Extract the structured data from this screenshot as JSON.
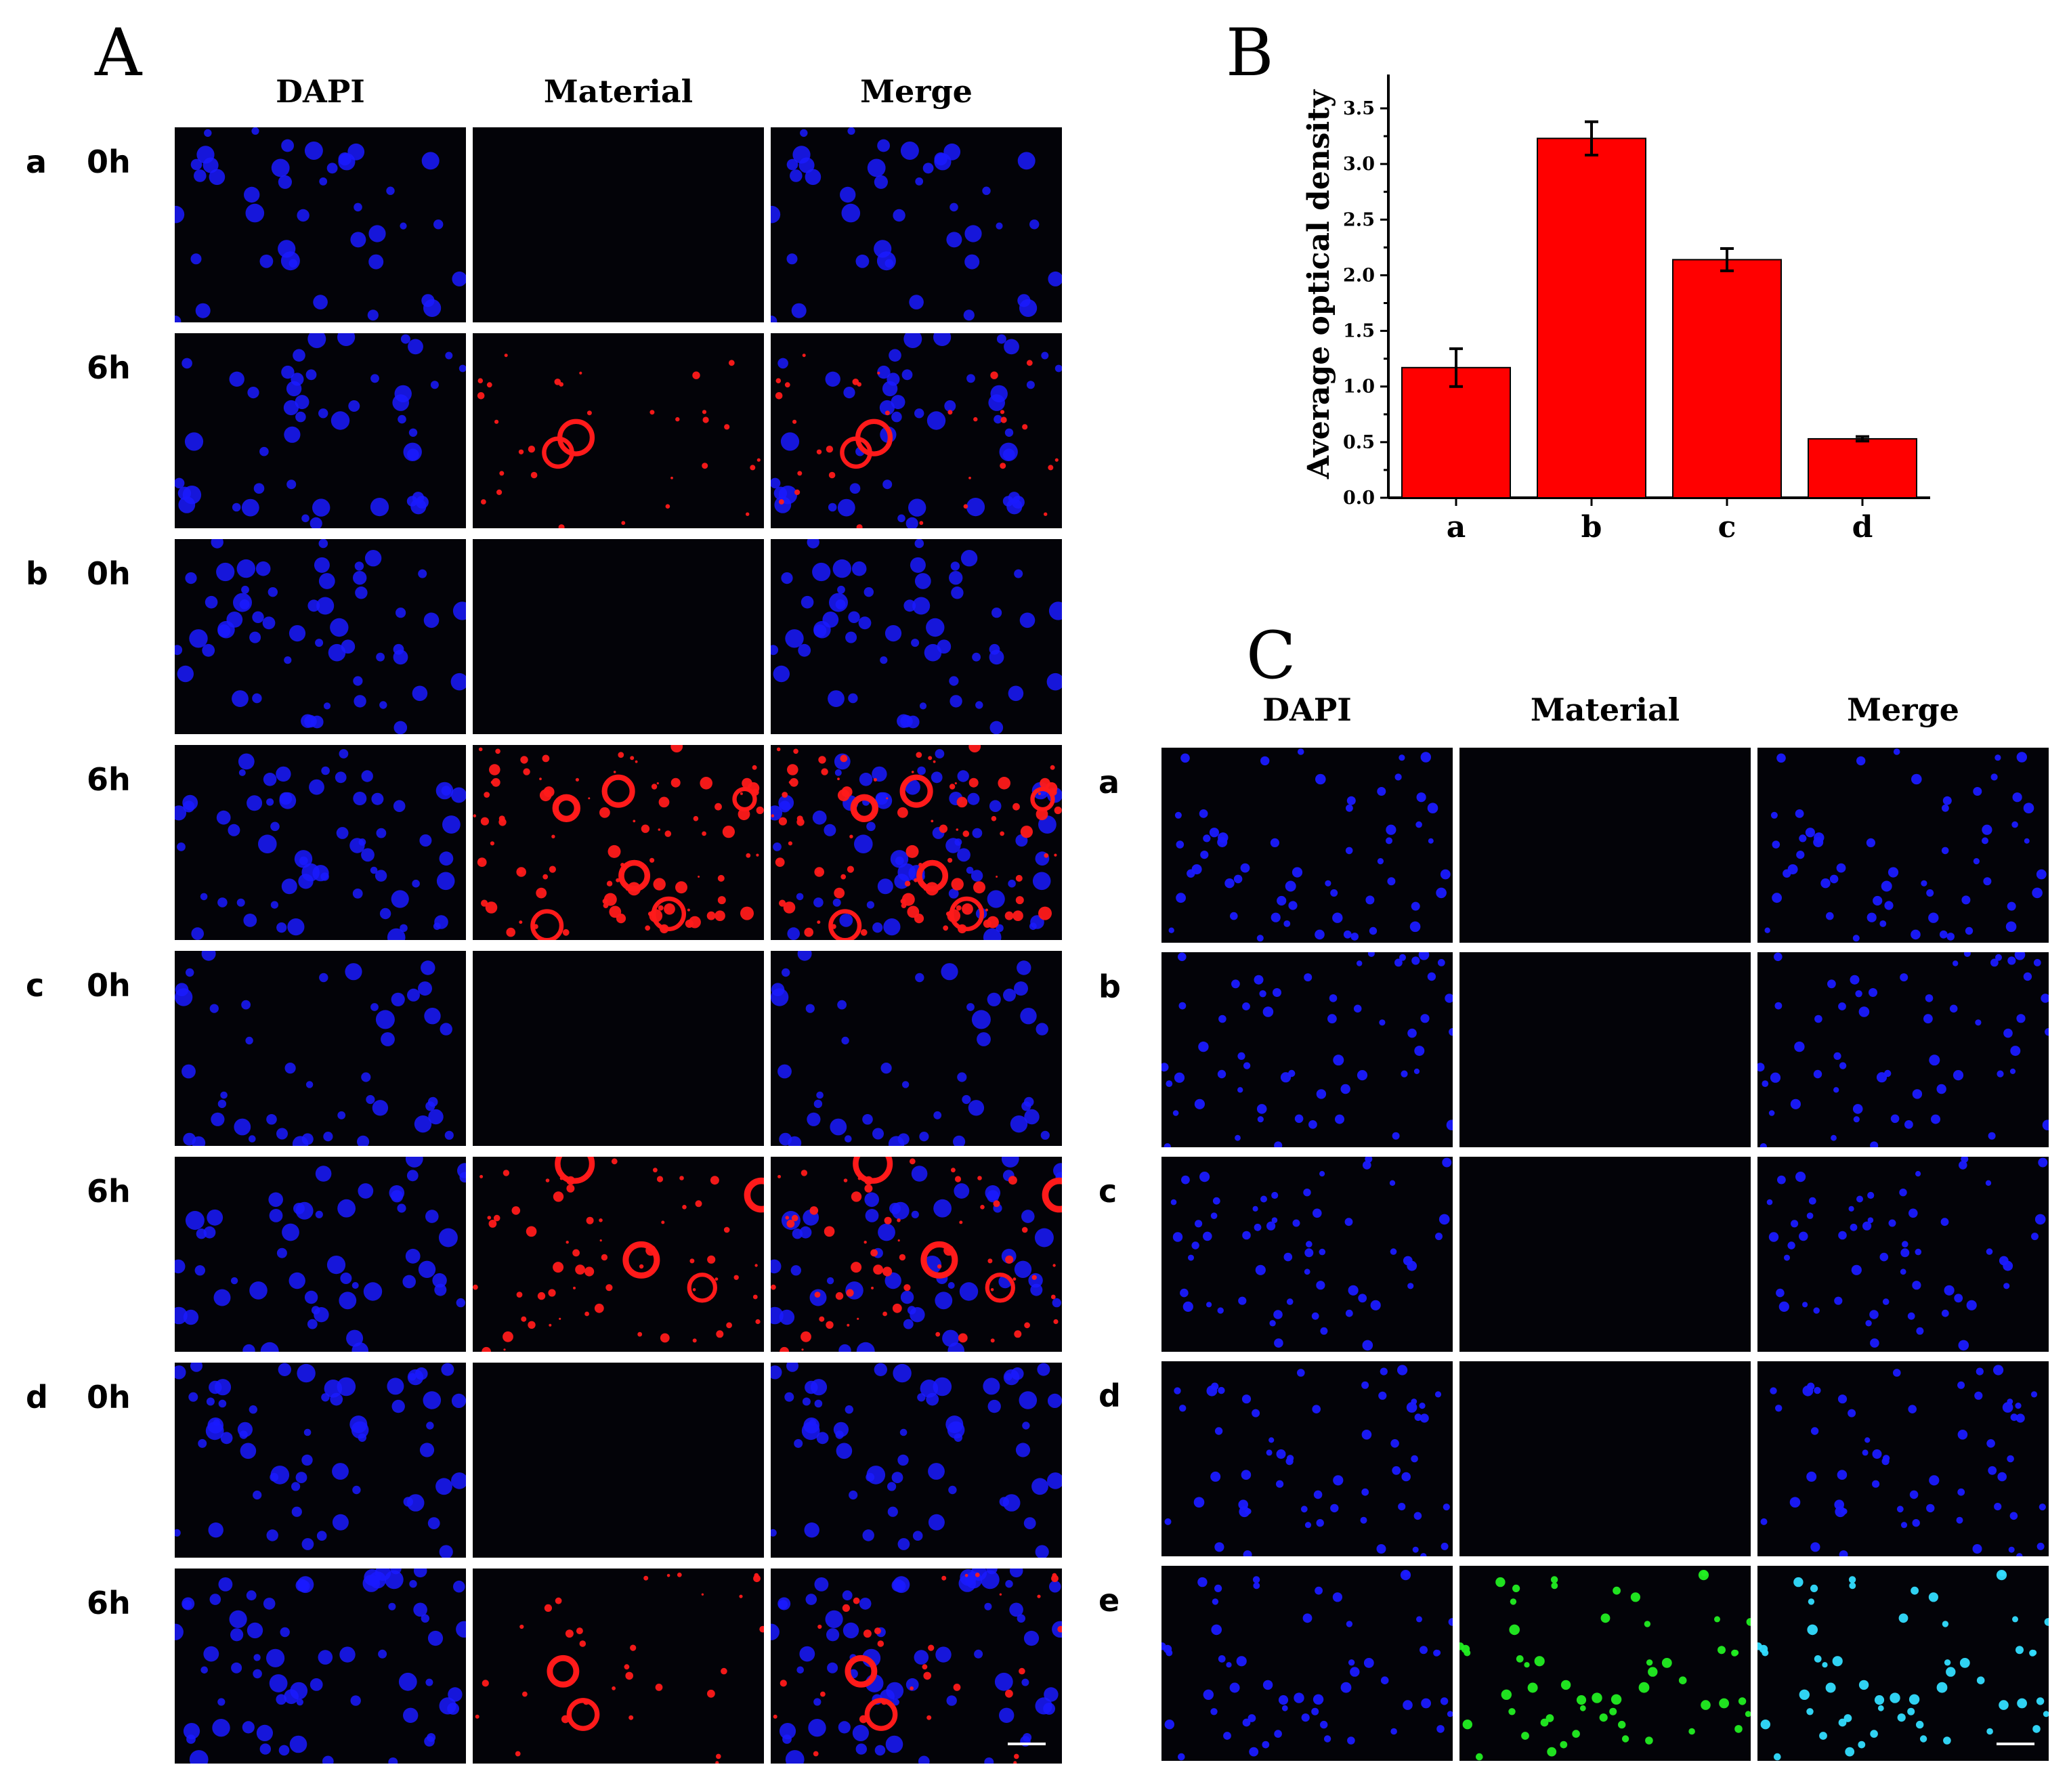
{
  "panelA": {
    "letter": "A",
    "columns": [
      "DAPI",
      "Material",
      "Merge"
    ],
    "groups": [
      {
        "label": "a",
        "rows": [
          {
            "time": "0h",
            "red": 0
          },
          {
            "time": "6h",
            "red": 1
          }
        ]
      },
      {
        "label": "b",
        "rows": [
          {
            "time": "0h",
            "red": 0
          },
          {
            "time": "6h",
            "red": 3
          }
        ]
      },
      {
        "label": "c",
        "rows": [
          {
            "time": "0h",
            "red": 0
          },
          {
            "time": "6h",
            "red": 2
          }
        ]
      },
      {
        "label": "d",
        "rows": [
          {
            "time": "0h",
            "red": 0
          },
          {
            "time": "6h",
            "red": 1
          }
        ]
      }
    ]
  },
  "panelB": {
    "letter": "B"
  },
  "panelC": {
    "letter": "C",
    "columns": [
      "DAPI",
      "Material",
      "Merge"
    ],
    "rows": [
      {
        "label": "a",
        "green": false
      },
      {
        "label": "b",
        "green": false
      },
      {
        "label": "c",
        "green": false
      },
      {
        "label": "d",
        "green": false
      },
      {
        "label": "e",
        "green": true
      }
    ]
  },
  "chart_data": {
    "type": "bar",
    "categories": [
      "a",
      "b",
      "c",
      "d"
    ],
    "values": [
      1.17,
      3.23,
      2.14,
      0.53
    ],
    "errors": [
      0.17,
      0.15,
      0.1,
      0.02
    ],
    "ylabel": "Average optical density",
    "xlabel": "",
    "ylim": [
      0,
      3.5
    ],
    "yticks": [
      "0.0",
      "0.5",
      "1.0",
      "1.5",
      "2.0",
      "2.5",
      "3.0",
      "3.5"
    ],
    "bar_color": "#ff0000",
    "grid": false
  },
  "colors": {
    "dapi": "#1a1aff",
    "material_red": "#ff1a1a",
    "material_green": "#22ee22",
    "merge_cyan": "#33ddff",
    "tile_background": "#030308"
  }
}
